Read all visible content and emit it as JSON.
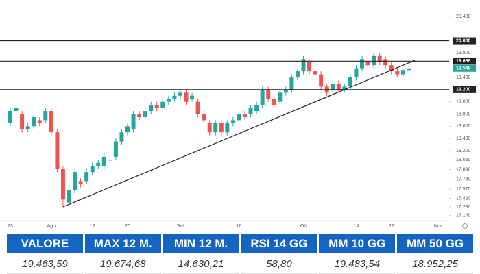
{
  "chart_data": {
    "type": "candlestick",
    "categories": [
      "23",
      null,
      null,
      null,
      null,
      null,
      null,
      "Ago",
      null,
      null,
      null,
      null,
      null,
      null,
      "12",
      null,
      null,
      null,
      null,
      null,
      "20",
      null,
      null,
      null,
      null,
      null,
      null,
      null,
      null,
      "Set",
      null,
      null,
      null,
      null,
      null,
      null,
      null,
      null,
      null,
      "16",
      null,
      null,
      null,
      null,
      null,
      null,
      null,
      null,
      null,
      null,
      "Ott",
      null,
      null,
      null,
      null,
      null,
      null,
      null,
      null,
      "14",
      null,
      null,
      null,
      null,
      null,
      "22",
      null,
      null,
      null,
      null,
      null,
      null,
      null,
      "Nov"
    ],
    "values": [
      [
        18650,
        18900,
        18600,
        18850
      ],
      [
        18850,
        18950,
        18800,
        18900
      ],
      [
        18800,
        18850,
        18500,
        18550
      ],
      [
        18550,
        18650,
        18500,
        18600
      ],
      [
        18600,
        18800,
        18550,
        18750
      ],
      [
        18700,
        18750,
        18600,
        18650
      ],
      [
        18700,
        18900,
        18650,
        18850
      ],
      [
        18850,
        18900,
        18450,
        18500
      ],
      [
        18500,
        18550,
        17850,
        17900
      ],
      [
        17900,
        17950,
        17280,
        17400
      ],
      [
        17350,
        17600,
        17300,
        17550
      ],
      [
        17550,
        17900,
        17500,
        17850
      ],
      [
        17700,
        17750,
        17600,
        17650
      ],
      [
        17700,
        17900,
        17650,
        17850
      ],
      [
        17850,
        18000,
        17800,
        17950
      ],
      [
        17950,
        18050,
        17900,
        18000
      ],
      [
        17950,
        18150,
        17900,
        18100
      ],
      [
        18050,
        18100,
        18000,
        18050
      ],
      [
        18100,
        18400,
        18050,
        18350
      ],
      [
        18350,
        18550,
        18300,
        18500
      ],
      [
        18500,
        18650,
        18450,
        18600
      ],
      [
        18550,
        18850,
        18500,
        18800
      ],
      [
        18800,
        18850,
        18700,
        18750
      ],
      [
        18750,
        18900,
        18700,
        18850
      ],
      [
        18850,
        19000,
        18800,
        18950
      ],
      [
        18950,
        19000,
        18850,
        18900
      ],
      [
        18900,
        19050,
        18850,
        19000
      ],
      [
        19000,
        19100,
        18950,
        19050
      ],
      [
        19050,
        19150,
        19000,
        19100
      ],
      [
        19100,
        19200,
        19050,
        19150
      ],
      [
        19150,
        19200,
        18950,
        19000
      ],
      [
        19050,
        19150,
        19000,
        19100
      ],
      [
        19000,
        19050,
        18750,
        18800
      ],
      [
        18800,
        18850,
        18650,
        18700
      ],
      [
        18650,
        18700,
        18450,
        18500
      ],
      [
        18500,
        18700,
        18450,
        18650
      ],
      [
        18650,
        18700,
        18450,
        18500
      ],
      [
        18500,
        18700,
        18450,
        18650
      ],
      [
        18650,
        18750,
        18600,
        18700
      ],
      [
        18700,
        18850,
        18650,
        18800
      ],
      [
        18800,
        18850,
        18700,
        18750
      ],
      [
        18800,
        18950,
        18750,
        18900
      ],
      [
        18850,
        19000,
        18800,
        18950
      ],
      [
        18950,
        19250,
        18900,
        19200
      ],
      [
        19200,
        19250,
        19000,
        19050
      ],
      [
        19050,
        19100,
        18900,
        18950
      ],
      [
        19000,
        19200,
        18950,
        19150
      ],
      [
        19150,
        19250,
        19100,
        19200
      ],
      [
        19200,
        19450,
        19150,
        19400
      ],
      [
        19400,
        19550,
        19350,
        19500
      ],
      [
        19500,
        19750,
        19450,
        19700
      ],
      [
        19650,
        19700,
        19450,
        19500
      ],
      [
        19500,
        19550,
        19400,
        19450
      ],
      [
        19450,
        19500,
        19200,
        19250
      ],
      [
        19250,
        19300,
        19100,
        19150
      ],
      [
        19200,
        19350,
        19150,
        19300
      ],
      [
        19300,
        19350,
        19150,
        19200
      ],
      [
        19200,
        19300,
        19150,
        19250
      ],
      [
        19250,
        19450,
        19200,
        19400
      ],
      [
        19400,
        19600,
        19350,
        19550
      ],
      [
        19550,
        19750,
        19500,
        19700
      ],
      [
        19650,
        19700,
        19550,
        19600
      ],
      [
        19600,
        19800,
        19550,
        19750
      ],
      [
        19750,
        19800,
        19600,
        19650
      ],
      [
        19700,
        19750,
        19550,
        19600
      ],
      [
        19600,
        19650,
        19450,
        19500
      ],
      [
        19500,
        19550,
        19400,
        19450
      ],
      [
        19450,
        19550,
        19400,
        19520
      ],
      [
        19520,
        19600,
        19480,
        19549
      ],
      null,
      null,
      null,
      null,
      null
    ],
    "up_color": "#26a69a",
    "down_color": "#ef5350",
    "ylim": [
      17100,
      20500
    ],
    "yticks": [
      {
        "value": 20400,
        "label": "20.400"
      },
      {
        "value": 19800,
        "label": "19.800"
      },
      {
        "value": 19400,
        "label": "19.400"
      },
      {
        "value": 19000,
        "label": "19.000"
      },
      {
        "value": 18800,
        "label": "18.800"
      },
      {
        "value": 18600,
        "label": "18.600"
      },
      {
        "value": 18400,
        "label": "18.400"
      },
      {
        "value": 18200,
        "label": "18.200"
      },
      {
        "value": 18050,
        "label": "18.050"
      },
      {
        "value": 17890,
        "label": "17.890"
      },
      {
        "value": 17730,
        "label": "17.730"
      },
      {
        "value": 17570,
        "label": "17.570"
      },
      {
        "value": 17420,
        "label": "17.420"
      },
      {
        "value": 17280,
        "label": "17.280"
      },
      {
        "value": 17140,
        "label": "17.140"
      }
    ],
    "hlines": [
      {
        "value": 20000,
        "label": "20.000"
      },
      {
        "value": 19666,
        "label": "19.666"
      },
      {
        "value": 19200,
        "label": "19.200"
      }
    ],
    "last_price": {
      "value": 19549,
      "label": "19.549"
    },
    "trendline": [
      [
        9,
        17280
      ],
      [
        69,
        19680
      ]
    ],
    "grid": false
  },
  "table": {
    "header": [
      "VALORE",
      "MAX 12 M.",
      "MIN 12 M.",
      "RSI 14 GG",
      "MM 10 GG",
      "MM 50 GG"
    ],
    "values": [
      "19.463,59",
      "19.674,68",
      "14.630,21",
      "58,80",
      "19.483,54",
      "18.952,25"
    ]
  }
}
